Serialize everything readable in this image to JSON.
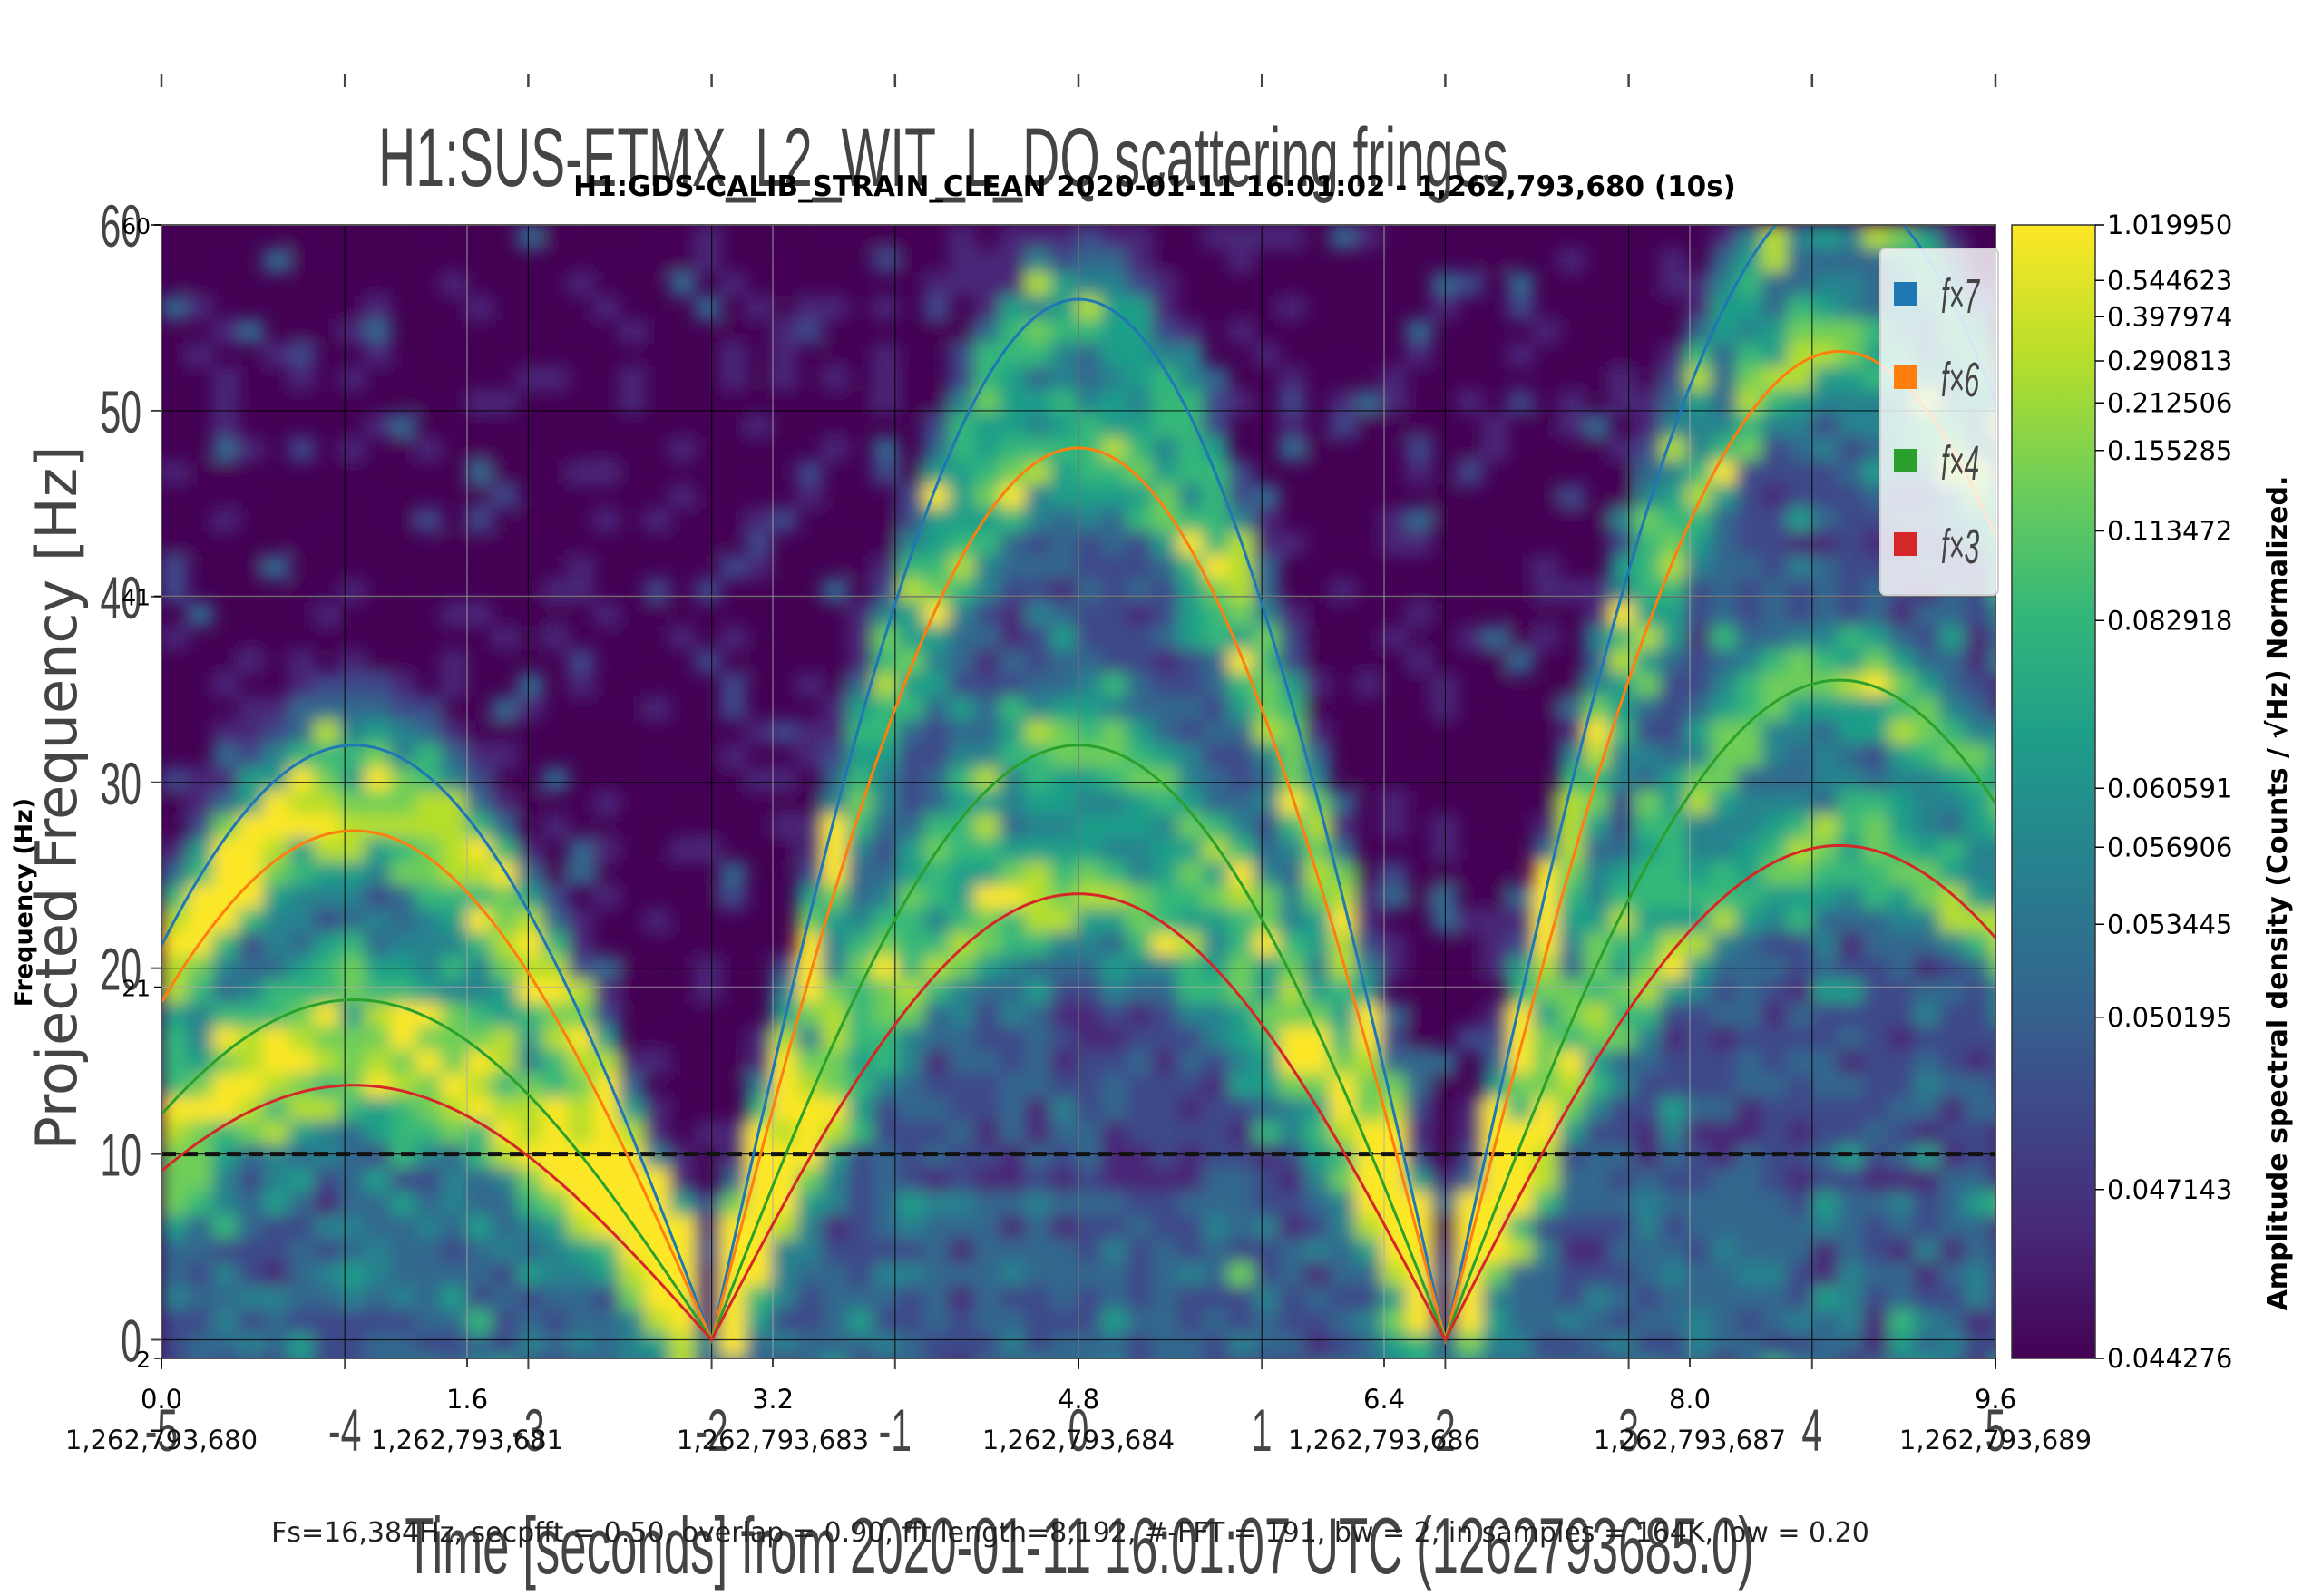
{
  "chart_data": [
    {
      "type": "heatmap",
      "title": "H1:GDS-CALIB_STRAIN_CLEAN 2020-01-11 16:01:02 - 1,262,793,680 (10s)",
      "ylabel": "Frequency (Hz)",
      "xlim": [
        0,
        9.6
      ],
      "ylim": [
        2,
        60
      ],
      "x_ticks": [
        {
          "value": 0.0,
          "label": "0.0",
          "gps": "1,262,793,680"
        },
        {
          "value": 1.6,
          "label": "1.6",
          "gps": "1,262,793,681"
        },
        {
          "value": 3.2,
          "label": "3.2",
          "gps": "1,262,793,683"
        },
        {
          "value": 4.8,
          "label": "4.8",
          "gps": "1,262,793,684"
        },
        {
          "value": 6.4,
          "label": "6.4",
          "gps": "1,262,793,686"
        },
        {
          "value": 8.0,
          "label": "8.0",
          "gps": "1,262,793,687"
        },
        {
          "value": 9.6,
          "label": "9.6",
          "gps": "1,262,793,689"
        }
      ],
      "y_ticks": [
        {
          "value": 2,
          "label": "2"
        },
        {
          "value": 21,
          "label": "21"
        },
        {
          "value": 41,
          "label": "41"
        },
        {
          "value": 60,
          "label": "60"
        }
      ],
      "colorbar": {
        "label": "Amplitude spectral density (Counts / √Hz) Normalized.",
        "ticks": [
          "1.019950",
          "0.544623",
          "0.397974",
          "0.290813",
          "0.212506",
          "0.155285",
          "0.113472",
          "0.082918",
          "0.060591",
          "0.056906",
          "0.053445",
          "0.050195",
          "0.047143",
          "0.044276"
        ],
        "colors": [
          "#440154",
          "#482878",
          "#3e4989",
          "#31688e",
          "#26828e",
          "#1f9e89",
          "#35b779",
          "#6ece58",
          "#b5de2b",
          "#fde725"
        ]
      },
      "footer": "Fs=16,384Hz, secpfft = 0.50, overlap = 0.90, fft length=8,192, #-FFT = 191, bw = 2, in samples = 164K, low = 0.20"
    },
    {
      "type": "line",
      "title": "H1:SUS-ETMX_L2_WIT_L_DQ scattering fringes",
      "xlabel": "Time [seconds] from 2020-01-11 16:01:07 UTC (1262793685.0)",
      "ylabel": "Projected Frequency [Hz]",
      "xlim": [
        -5,
        5
      ],
      "ylim": [
        -1,
        60
      ],
      "x_ticks": [
        "-5",
        "-4",
        "-3",
        "-2",
        "-1",
        "0",
        "1",
        "2",
        "3",
        "4",
        "5"
      ],
      "y_ticks": [
        "0",
        "10",
        "20",
        "30",
        "40",
        "50",
        "60"
      ],
      "threshold": 10,
      "legend_position": "top-right",
      "series": [
        {
          "name": "f×7",
          "color": "#1f77b4",
          "peaks": [
            32,
            56,
            62
          ]
        },
        {
          "name": "f×6",
          "color": "#ff7f0e",
          "peaks": [
            27.4,
            48,
            53.2
          ]
        },
        {
          "name": "f×4",
          "color": "#2ca02c",
          "peaks": [
            18.3,
            32,
            35.5
          ]
        },
        {
          "name": "f×3",
          "color": "#d62728",
          "peaks": [
            13.7,
            24,
            26.6
          ]
        }
      ]
    }
  ]
}
